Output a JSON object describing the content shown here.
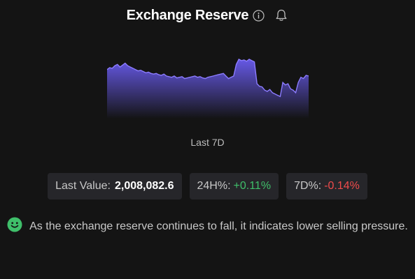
{
  "header": {
    "title": "Exchange Reserve"
  },
  "chart": {
    "period_label": "Last 7D",
    "colors": {
      "line": "#8c7cff",
      "fill_top": "#6a5cf0",
      "fill_bottom": "#141414"
    },
    "chart_data": {
      "type": "area",
      "values": [
        72,
        75,
        74,
        78,
        80,
        76,
        79,
        82,
        78,
        76,
        74,
        72,
        70,
        71,
        69,
        67,
        68,
        66,
        65,
        66,
        64,
        63,
        65,
        62,
        61,
        60,
        62,
        59,
        60,
        61,
        58,
        59,
        60,
        61,
        62,
        60,
        61,
        59,
        58,
        60,
        61,
        62,
        63,
        64,
        65,
        66,
        62,
        58,
        60,
        62,
        80,
        88,
        86,
        87,
        85,
        88,
        86,
        84,
        50,
        46,
        45,
        40,
        38,
        41,
        36,
        34,
        32,
        30,
        52,
        48,
        50,
        42,
        40,
        36,
        52,
        60,
        58,
        63,
        62
      ],
      "title": "",
      "xlabel": "",
      "ylabel": ""
    }
  },
  "stats": {
    "last_value_label": "Last Value:",
    "last_value": "2,008,082.6",
    "h24_label": "24H%:",
    "h24_value": "+0.11%",
    "d7_label": "7D%:",
    "d7_value": "-0.14%"
  },
  "insight": {
    "icon": "smile-icon",
    "icon_color": "#3fbf6a",
    "text": "As the exchange reserve continues to fall, it indicates lower selling pressure."
  }
}
